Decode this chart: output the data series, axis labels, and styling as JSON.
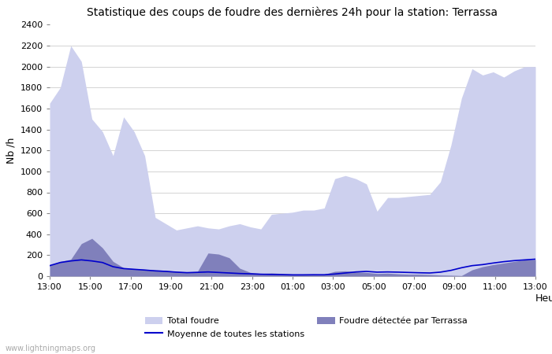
{
  "title": "Statistique des coups de foudre des dernières 24h pour la station: Terrassa",
  "xlabel": "Heure",
  "ylabel": "Nb /h",
  "watermark": "www.lightningmaps.org",
  "x_labels": [
    "13:00",
    "15:00",
    "17:00",
    "19:00",
    "21:00",
    "23:00",
    "01:00",
    "03:00",
    "05:00",
    "07:00",
    "09:00",
    "11:00",
    "13:00"
  ],
  "ylim": [
    0,
    2400
  ],
  "yticks": [
    0,
    200,
    400,
    600,
    800,
    1000,
    1200,
    1400,
    1600,
    1800,
    2000,
    2200,
    2400
  ],
  "color_total": "#cdd0ee",
  "color_local": "#8080bb",
  "color_mean": "#0000cc",
  "background_color": "#ffffff",
  "grid_color": "#cccccc",
  "total_foudre": [
    1650,
    1800,
    2200,
    2050,
    1500,
    1380,
    1150,
    1520,
    1380,
    1150,
    560,
    500,
    440,
    460,
    480,
    460,
    450,
    480,
    500,
    470,
    450,
    590,
    600,
    610,
    630,
    630,
    650,
    930,
    960,
    930,
    880,
    620,
    750,
    750,
    760,
    770,
    780,
    900,
    1250,
    1700,
    1980,
    1920,
    1950,
    1900,
    1960,
    2000,
    2000
  ],
  "local_foudre": [
    100,
    140,
    160,
    310,
    360,
    270,
    140,
    80,
    70,
    65,
    60,
    55,
    45,
    40,
    45,
    220,
    210,
    175,
    75,
    35,
    25,
    30,
    25,
    20,
    20,
    20,
    18,
    45,
    50,
    40,
    35,
    25,
    28,
    22,
    18,
    18,
    15,
    10,
    8,
    5,
    60,
    90,
    110,
    125,
    140,
    155,
    158
  ],
  "mean_line": [
    100,
    130,
    145,
    155,
    145,
    130,
    90,
    72,
    65,
    58,
    50,
    45,
    38,
    33,
    36,
    40,
    35,
    30,
    25,
    22,
    18,
    16,
    14,
    12,
    12,
    13,
    13,
    20,
    30,
    40,
    45,
    38,
    40,
    38,
    35,
    32,
    30,
    38,
    55,
    80,
    100,
    110,
    125,
    138,
    148,
    155,
    162
  ]
}
